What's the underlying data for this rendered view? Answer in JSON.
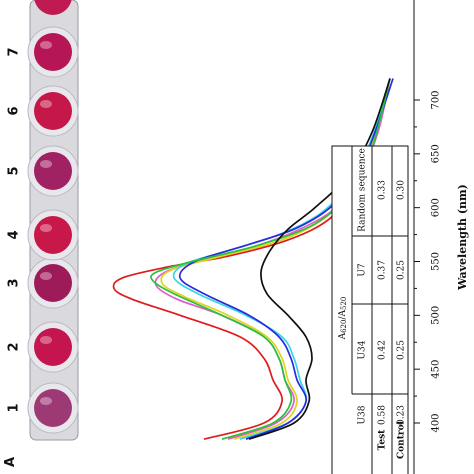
{
  "chart_data": {
    "type": "line",
    "orientation": "rotated-90-clockwise",
    "xlabel": "Wavelength (nm)",
    "x_ticks": [
      400,
      450,
      500,
      550,
      600,
      650,
      700
    ],
    "xlim": [
      380,
      720
    ],
    "series": [
      {
        "color": "#e01b1b",
        "x": [
          385,
          400,
          420,
          440,
          460,
          480,
          500,
          515,
          525,
          535,
          545,
          555,
          570,
          590,
          620,
          660,
          700,
          720
        ],
        "y": [
          0.7,
          0.5,
          0.44,
          0.47,
          0.5,
          0.58,
          0.78,
          0.94,
          1.0,
          0.97,
          0.82,
          0.62,
          0.42,
          0.28,
          0.2,
          0.14,
          0.1,
          0.08
        ]
      },
      {
        "color": "#e35dc9",
        "x": [
          385,
          400,
          420,
          440,
          460,
          480,
          500,
          515,
          528,
          540,
          552,
          565,
          580,
          600,
          630,
          670,
          720
        ],
        "y": [
          0.62,
          0.46,
          0.4,
          0.43,
          0.45,
          0.5,
          0.64,
          0.79,
          0.86,
          0.83,
          0.7,
          0.52,
          0.38,
          0.26,
          0.18,
          0.12,
          0.08
        ]
      },
      {
        "color": "#ddd51f",
        "x": [
          385,
          400,
          420,
          440,
          460,
          480,
          500,
          518,
          530,
          542,
          555,
          570,
          590,
          620,
          660,
          720
        ],
        "y": [
          0.6,
          0.44,
          0.39,
          0.42,
          0.44,
          0.49,
          0.62,
          0.77,
          0.84,
          0.81,
          0.64,
          0.44,
          0.3,
          0.2,
          0.14,
          0.08
        ]
      },
      {
        "color": "#37d6e6",
        "x": [
          385,
          400,
          420,
          440,
          460,
          480,
          500,
          520,
          535,
          548,
          560,
          575,
          595,
          625,
          665,
          720
        ],
        "y": [
          0.58,
          0.42,
          0.36,
          0.38,
          0.4,
          0.44,
          0.56,
          0.72,
          0.8,
          0.76,
          0.62,
          0.45,
          0.31,
          0.21,
          0.14,
          0.08
        ]
      },
      {
        "color": "#2a2ae0",
        "x": [
          385,
          400,
          420,
          440,
          460,
          480,
          500,
          520,
          535,
          550,
          565,
          580,
          600,
          630,
          670,
          720
        ],
        "y": [
          0.56,
          0.42,
          0.36,
          0.39,
          0.41,
          0.45,
          0.55,
          0.7,
          0.78,
          0.73,
          0.56,
          0.4,
          0.28,
          0.19,
          0.13,
          0.07
        ]
      },
      {
        "color": "#27c23a",
        "x": [
          385,
          400,
          420,
          440,
          460,
          480,
          500,
          520,
          532,
          540,
          550,
          565,
          585,
          615,
          655,
          720
        ],
        "y": [
          0.64,
          0.47,
          0.41,
          0.43,
          0.45,
          0.5,
          0.64,
          0.8,
          0.87,
          0.86,
          0.74,
          0.52,
          0.33,
          0.21,
          0.14,
          0.08
        ]
      },
      {
        "color": "#101010",
        "x": [
          385,
          400,
          420,
          440,
          460,
          480,
          500,
          520,
          540,
          560,
          580,
          600,
          630,
          670,
          720
        ],
        "y": [
          0.55,
          0.4,
          0.35,
          0.36,
          0.34,
          0.36,
          0.42,
          0.49,
          0.51,
          0.48,
          0.42,
          0.33,
          0.22,
          0.14,
          0.08
        ]
      }
    ]
  },
  "wells": [
    "1",
    "2",
    "3",
    "4",
    "5",
    "6",
    "7"
  ],
  "well_colors": [
    "#9d3a76",
    "#c4154e",
    "#9e1b5a",
    "#c8184a",
    "#a02164",
    "#c51848",
    "#b61656"
  ],
  "table": {
    "header_left": "A",
    "header_left_sub": "620",
    "header_right": "A",
    "header_right_sub": "520",
    "columns": [
      "U38",
      "U34",
      "U7",
      "Random sequence"
    ],
    "rows": [
      {
        "label": "Test",
        "values": [
          "0.58",
          "0.42",
          "0.37",
          "0.33"
        ]
      },
      {
        "label": "Control",
        "values": [
          "0.23",
          "0.25",
          "0.25",
          "0.30"
        ]
      }
    ]
  }
}
